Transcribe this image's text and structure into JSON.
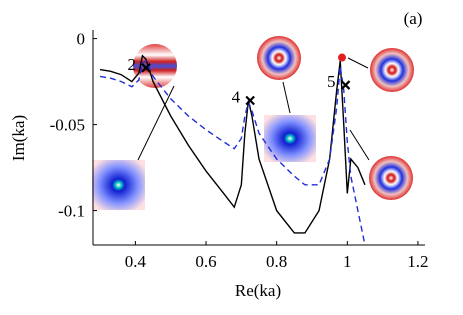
{
  "chart_data": {
    "type": "line",
    "panel_label": "(a)",
    "xlabel": "Re(ka)",
    "ylabel": "Im(ka)",
    "x": [
      0.3,
      0.33,
      0.36,
      0.39,
      0.41,
      0.42,
      0.43,
      0.45,
      0.5,
      0.55,
      0.6,
      0.65,
      0.68,
      0.7,
      0.71,
      0.72,
      0.73,
      0.75,
      0.8,
      0.85,
      0.88,
      0.92,
      0.95,
      0.97,
      0.98,
      0.99,
      1.0,
      1.01,
      1.03,
      1.05
    ],
    "series": [
      {
        "color": "#000000",
        "dash": "none",
        "values": [
          -0.018,
          -0.019,
          -0.021,
          -0.025,
          -0.02,
          -0.01,
          -0.012,
          -0.025,
          -0.045,
          -0.062,
          -0.077,
          -0.09,
          -0.098,
          -0.085,
          -0.055,
          -0.036,
          -0.045,
          -0.07,
          -0.1,
          -0.113,
          -0.113,
          -0.1,
          -0.07,
          -0.03,
          -0.013,
          -0.05,
          -0.09,
          -0.07,
          -0.075,
          -0.085
        ]
      },
      {
        "color": "#1f2fd6",
        "dash": "6 4",
        "values": [
          -0.022,
          -0.023,
          -0.025,
          -0.028,
          -0.024,
          -0.014,
          -0.013,
          -0.022,
          -0.035,
          -0.045,
          -0.053,
          -0.06,
          -0.064,
          -0.058,
          -0.045,
          -0.037,
          -0.042,
          -0.055,
          -0.07,
          -0.08,
          -0.085,
          -0.085,
          -0.07,
          -0.04,
          -0.016,
          -0.03,
          -0.06,
          -0.08,
          -0.1,
          -0.12
        ]
      }
    ],
    "markers": [
      {
        "label": "2",
        "x": 0.43,
        "y": -0.017
      },
      {
        "label": "4",
        "x": 0.725,
        "y": -0.036
      },
      {
        "label": "5",
        "x": 0.995,
        "y": -0.027
      }
    ],
    "point": {
      "x": 0.985,
      "y": -0.011,
      "color": "#e02020"
    },
    "xlim": [
      0.28,
      1.22
    ],
    "ylim": [
      -0.12,
      0.005
    ],
    "xticks": [
      0.4,
      0.6,
      0.8,
      1,
      1.2
    ],
    "yticks": [
      0,
      -0.05,
      -0.1
    ]
  }
}
